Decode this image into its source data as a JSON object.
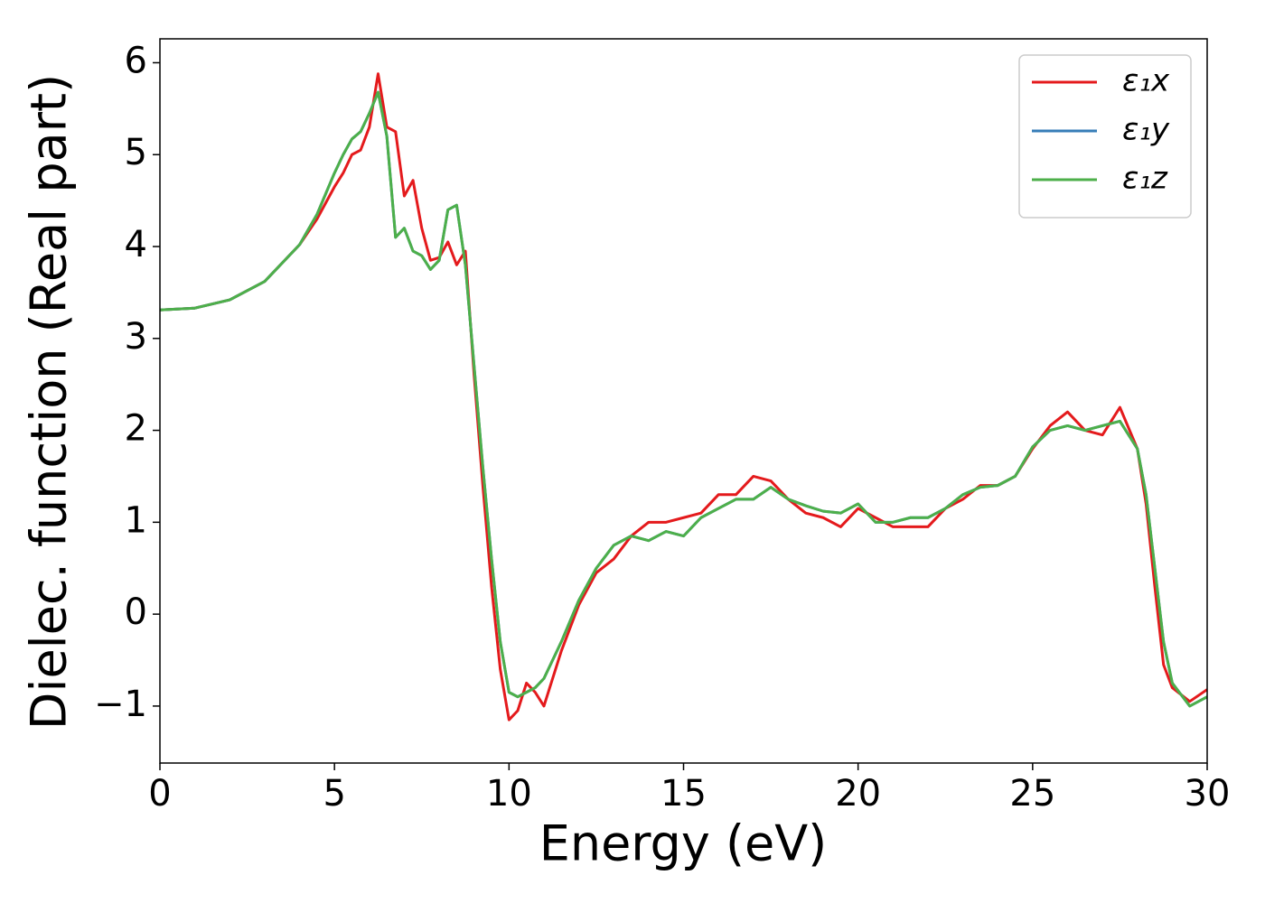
{
  "chart_data": {
    "type": "line",
    "xlabel": "Energy (eV)",
    "ylabel": "Dielec. function (Real part)",
    "xlim": [
      0,
      30
    ],
    "ylim": [
      -1.62,
      6.26
    ],
    "xticks": [
      0,
      5,
      10,
      15,
      20,
      25,
      30
    ],
    "yticks": [
      {
        "value": -1,
        "label": "−1"
      },
      0,
      1,
      2,
      3,
      4,
      5,
      6
    ],
    "legend": "upper right",
    "x": [
      0,
      1,
      2,
      3,
      4,
      4.5,
      5,
      5.25,
      5.5,
      5.75,
      6,
      6.25,
      6.5,
      6.75,
      7,
      7.25,
      7.5,
      7.75,
      8,
      8.25,
      8.5,
      8.75,
      9,
      9.25,
      9.5,
      9.75,
      10,
      10.25,
      10.5,
      10.75,
      11,
      11.5,
      12,
      12.5,
      13,
      13.5,
      14,
      14.5,
      15,
      15.5,
      16,
      16.5,
      17,
      17.5,
      18,
      18.5,
      19,
      19.5,
      20,
      20.5,
      21,
      21.5,
      22,
      22.5,
      23,
      23.5,
      24,
      24.5,
      25,
      25.5,
      26,
      26.5,
      27,
      27.5,
      28,
      28.25,
      28.5,
      28.75,
      29,
      29.5,
      30
    ],
    "series": [
      {
        "name": "ε₁x",
        "color": "#e41a1c",
        "values": [
          3.31,
          3.33,
          3.42,
          3.62,
          4.02,
          4.3,
          4.65,
          4.8,
          5.0,
          5.05,
          5.3,
          5.88,
          5.3,
          5.25,
          4.55,
          4.72,
          4.2,
          3.85,
          3.88,
          4.05,
          3.8,
          3.95,
          2.6,
          1.4,
          0.3,
          -0.6,
          -1.15,
          -1.05,
          -0.75,
          -0.85,
          -1.0,
          -0.4,
          0.1,
          0.45,
          0.6,
          0.85,
          1.0,
          1.0,
          1.05,
          1.1,
          1.3,
          1.3,
          1.5,
          1.45,
          1.25,
          1.1,
          1.05,
          0.95,
          1.15,
          1.05,
          0.95,
          0.95,
          0.95,
          1.15,
          1.25,
          1.4,
          1.4,
          1.5,
          1.8,
          2.05,
          2.2,
          2.0,
          1.95,
          2.25,
          1.8,
          1.2,
          0.3,
          -0.55,
          -0.8,
          -0.95,
          -0.82
        ]
      },
      {
        "name": "ε₁y",
        "color": "#377eb8",
        "values": [
          3.31,
          3.33,
          3.42,
          3.62,
          4.02,
          4.35,
          4.8,
          5.0,
          5.17,
          5.25,
          5.45,
          5.68,
          5.2,
          4.1,
          4.2,
          3.95,
          3.9,
          3.75,
          3.85,
          4.4,
          4.45,
          3.8,
          2.7,
          1.6,
          0.6,
          -0.3,
          -0.85,
          -0.9,
          -0.85,
          -0.8,
          -0.7,
          -0.3,
          0.15,
          0.5,
          0.75,
          0.85,
          0.8,
          0.9,
          0.85,
          1.05,
          1.15,
          1.25,
          1.25,
          1.38,
          1.25,
          1.18,
          1.12,
          1.1,
          1.2,
          1.0,
          1.0,
          1.05,
          1.05,
          1.15,
          1.3,
          1.38,
          1.4,
          1.5,
          1.82,
          2.0,
          2.05,
          2.0,
          2.05,
          2.1,
          1.8,
          1.3,
          0.5,
          -0.3,
          -0.75,
          -1.0,
          -0.9
        ]
      },
      {
        "name": "ε₁z",
        "color": "#4daf4a",
        "values": [
          3.31,
          3.33,
          3.42,
          3.62,
          4.02,
          4.35,
          4.8,
          5.0,
          5.17,
          5.25,
          5.45,
          5.68,
          5.2,
          4.1,
          4.2,
          3.95,
          3.9,
          3.75,
          3.85,
          4.4,
          4.45,
          3.8,
          2.7,
          1.6,
          0.6,
          -0.3,
          -0.85,
          -0.9,
          -0.85,
          -0.8,
          -0.7,
          -0.3,
          0.15,
          0.5,
          0.75,
          0.85,
          0.8,
          0.9,
          0.85,
          1.05,
          1.15,
          1.25,
          1.25,
          1.38,
          1.25,
          1.18,
          1.12,
          1.1,
          1.2,
          1.0,
          1.0,
          1.05,
          1.05,
          1.15,
          1.3,
          1.38,
          1.4,
          1.5,
          1.82,
          2.0,
          2.05,
          2.0,
          2.05,
          2.1,
          1.8,
          1.3,
          0.5,
          -0.3,
          -0.75,
          -1.0,
          -0.9
        ]
      }
    ]
  }
}
